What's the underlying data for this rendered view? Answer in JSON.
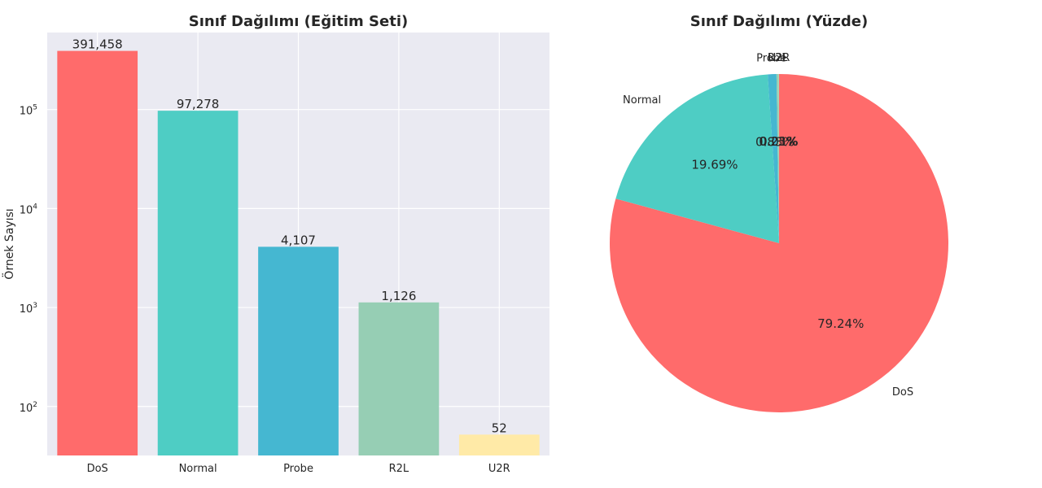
{
  "chart_data": [
    {
      "type": "bar",
      "title": "Sınıf Dağılımı (Eğitim Seti)",
      "xlabel": "",
      "ylabel": "Örnek Sayısı",
      "yscale": "log",
      "ylim": [
        32,
        600000
      ],
      "grid": true,
      "categories": [
        "DoS",
        "Normal",
        "Probe",
        "R2L",
        "U2R"
      ],
      "values": [
        391458,
        97278,
        4107,
        1126,
        52
      ],
      "value_labels": [
        "391,458",
        "97,278",
        "4,107",
        "1,126",
        "52"
      ],
      "colors": [
        "#FF6B6B",
        "#4ECDC4",
        "#45B7D1",
        "#96CEB4",
        "#FFEAA7"
      ],
      "yticks": [
        {
          "value": 100,
          "base": "10",
          "exp": "2"
        },
        {
          "value": 1000,
          "base": "10",
          "exp": "3"
        },
        {
          "value": 10000,
          "base": "10",
          "exp": "4"
        },
        {
          "value": 100000,
          "base": "10",
          "exp": "5"
        }
      ]
    },
    {
      "type": "pie",
      "title": "Sınıf Dağılımı (Yüzde)",
      "labels": [
        "DoS",
        "Normal",
        "Probe",
        "R2L",
        "U2R"
      ],
      "values": [
        79.24,
        19.69,
        0.83,
        0.23,
        0.01
      ],
      "pct_labels": [
        "79.24%",
        "19.69%",
        "0.83%",
        "0.23%",
        "0.01%"
      ],
      "colors": [
        "#FF6B6B",
        "#4ECDC4",
        "#45B7D1",
        "#96CEB4",
        "#FFEAA7"
      ],
      "start_angle_deg": 90,
      "direction": "clockwise"
    }
  ]
}
